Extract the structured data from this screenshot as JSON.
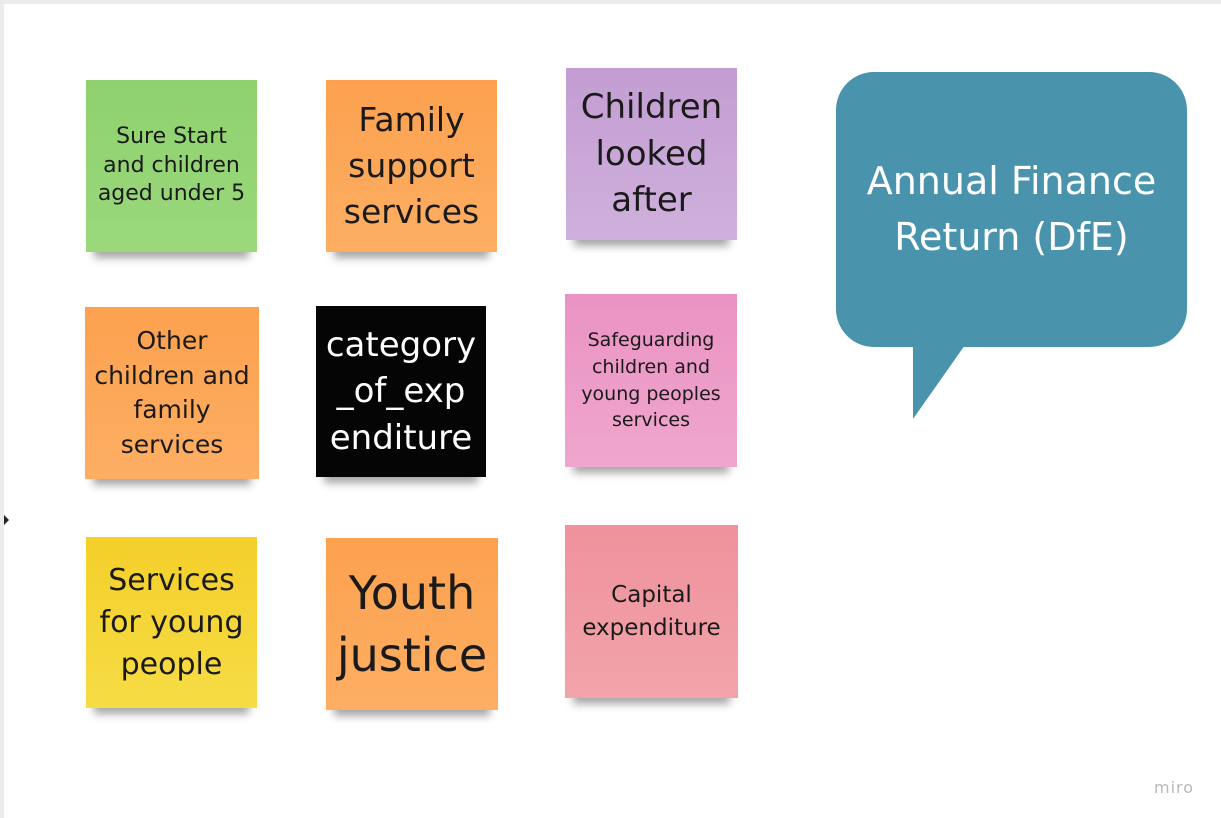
{
  "board": {
    "stickies": [
      {
        "text": "Sure Start and children aged under 5",
        "color": "#8fd16e"
      },
      {
        "text": "Family support services",
        "color": "#fca14f"
      },
      {
        "text": "Children looked after",
        "color": "#c39dd2"
      },
      {
        "text": "Other children and family services",
        "color": "#fca14f"
      },
      {
        "text": "category_of_exp enditure",
        "color": "#050505"
      },
      {
        "text": "Safeguarding children and young peoples services",
        "color": "#ea93c3"
      },
      {
        "text": "Services for young people",
        "color": "#f4cf2a"
      },
      {
        "text": "Youth justice",
        "color": "#fca14f"
      },
      {
        "text": "Capital expenditure",
        "color": "#ef929c"
      }
    ],
    "callout": {
      "text": "Annual Finance Return (DfE)",
      "color": "#4a93ad"
    }
  },
  "watermark": "miro"
}
